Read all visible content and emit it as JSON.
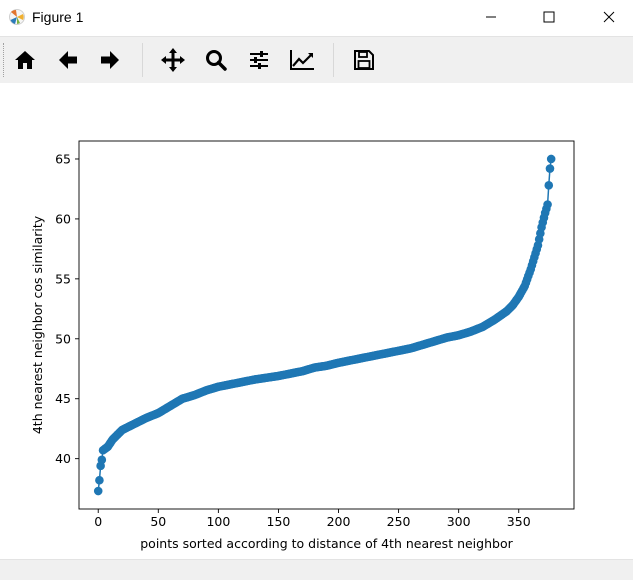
{
  "window": {
    "title": "Figure 1",
    "icon": "matplotlib-icon",
    "controls": [
      "minimize-icon",
      "maximize-icon",
      "close-icon"
    ]
  },
  "toolbar": {
    "buttons": [
      {
        "name": "home-button",
        "icon": "home-icon"
      },
      {
        "name": "back-button",
        "icon": "arrow-left-icon"
      },
      {
        "name": "forward-button",
        "icon": "arrow-right-icon"
      },
      {
        "name": "pan-button",
        "icon": "move-icon"
      },
      {
        "name": "zoom-button",
        "icon": "magnifier-icon"
      },
      {
        "name": "configure-subplots-button",
        "icon": "sliders-icon"
      },
      {
        "name": "edit-axis-button",
        "icon": "chart-line-icon"
      },
      {
        "name": "save-button",
        "icon": "floppy-disk-icon"
      }
    ]
  },
  "chart_data": {
    "type": "line",
    "xlabel": "points sorted according to distance of 4th nearest neighbor",
    "ylabel": "4th nearest neighbor cos similarity",
    "xlim": [
      -16,
      396
    ],
    "ylim": [
      35.8,
      66.5
    ],
    "xticks": [
      0,
      50,
      100,
      150,
      200,
      250,
      300,
      350
    ],
    "yticks": [
      40,
      45,
      50,
      55,
      60,
      65
    ],
    "color": "#1f77b4",
    "marker": "circle",
    "n_points": 378,
    "x_range": [
      0,
      377
    ],
    "curve_knots": [
      [
        0,
        37.3
      ],
      [
        1,
        38.2
      ],
      [
        2,
        39.4
      ],
      [
        3,
        39.9
      ],
      [
        4,
        40.7
      ],
      [
        8,
        41.0
      ],
      [
        12,
        41.6
      ],
      [
        20,
        42.4
      ],
      [
        30,
        42.9
      ],
      [
        40,
        43.4
      ],
      [
        50,
        43.8
      ],
      [
        60,
        44.4
      ],
      [
        70,
        45.0
      ],
      [
        80,
        45.3
      ],
      [
        90,
        45.7
      ],
      [
        100,
        46.0
      ],
      [
        110,
        46.2
      ],
      [
        120,
        46.4
      ],
      [
        130,
        46.6
      ],
      [
        140,
        46.75
      ],
      [
        150,
        46.9
      ],
      [
        160,
        47.1
      ],
      [
        170,
        47.3
      ],
      [
        180,
        47.6
      ],
      [
        190,
        47.75
      ],
      [
        200,
        48.0
      ],
      [
        210,
        48.2
      ],
      [
        220,
        48.4
      ],
      [
        230,
        48.6
      ],
      [
        240,
        48.8
      ],
      [
        250,
        49.0
      ],
      [
        260,
        49.2
      ],
      [
        270,
        49.5
      ],
      [
        280,
        49.8
      ],
      [
        290,
        50.1
      ],
      [
        300,
        50.3
      ],
      [
        310,
        50.6
      ],
      [
        320,
        51.0
      ],
      [
        330,
        51.6
      ],
      [
        340,
        52.3
      ],
      [
        345,
        52.8
      ],
      [
        350,
        53.5
      ],
      [
        355,
        54.4
      ],
      [
        360,
        55.8
      ],
      [
        363,
        56.8
      ],
      [
        366,
        57.8
      ],
      [
        369,
        59.3
      ],
      [
        372,
        60.5
      ],
      [
        374,
        61.2
      ],
      [
        375,
        62.8
      ],
      [
        376,
        64.2
      ],
      [
        377,
        65.0
      ]
    ]
  }
}
